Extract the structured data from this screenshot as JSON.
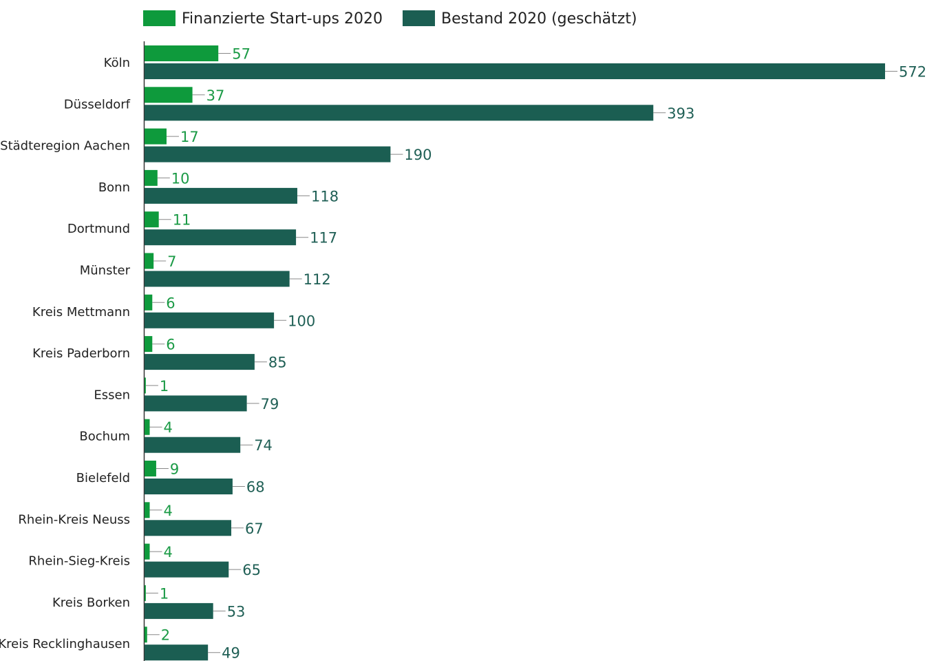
{
  "colors": {
    "finanzierte": "#0e9a3c",
    "bestand": "#1b5e52",
    "axis": "#333333",
    "leader": "#888888"
  },
  "legend": [
    {
      "label": "Finanzierte Start-ups 2020",
      "color": "#0e9a3c"
    },
    {
      "label": "Bestand 2020 (geschätzt)",
      "color": "#1b5e52"
    }
  ],
  "chart_data": {
    "type": "bar",
    "orientation": "horizontal",
    "categories": [
      "Köln",
      "Düsseldorf",
      "Städteregion Aachen",
      "Bonn",
      "Dortmund",
      "Münster",
      "Kreis Mettmann",
      "Kreis Paderborn",
      "Essen",
      "Bochum",
      "Bielefeld",
      "Rhein-Kreis Neuss",
      "Rhein-Sieg-Kreis",
      "Kreis Borken",
      "Kreis Recklinghausen"
    ],
    "series": [
      {
        "name": "Finanzierte Start-ups 2020",
        "color": "#0e9a3c",
        "values": [
          57,
          37,
          17,
          10,
          11,
          7,
          6,
          6,
          1,
          4,
          9,
          4,
          4,
          1,
          2
        ]
      },
      {
        "name": "Bestand 2020 (geschätzt)",
        "color": "#1b5e52",
        "values": [
          572,
          393,
          190,
          118,
          117,
          112,
          100,
          85,
          79,
          74,
          68,
          67,
          65,
          53,
          49
        ]
      }
    ],
    "legend_position": "top",
    "grid": false,
    "data_labels": true
  }
}
